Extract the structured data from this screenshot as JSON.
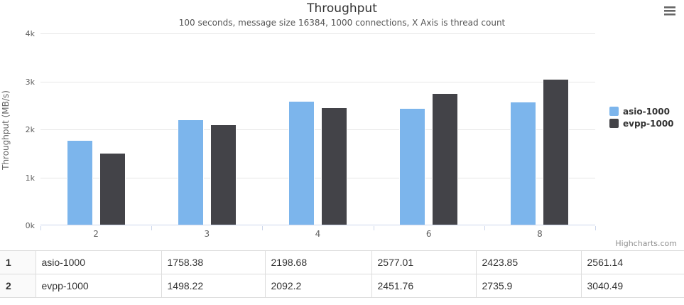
{
  "chart": {
    "title": "Throughput",
    "subtitle": "100 seconds, message size 16384, 1000 connections, X Axis is thread count",
    "yaxis_title": "Throughput (MB/s)",
    "credits": "Highcharts.com",
    "menu_icon": "hamburger-icon",
    "colors": {
      "series1": "#7cb5ec",
      "series2": "#434348",
      "gridline": "#e6e6e6",
      "axis_line": "#ccd6eb"
    }
  },
  "chart_data": {
    "type": "bar",
    "title": "Throughput",
    "subtitle": "100 seconds, message size 16384, 1000 connections, X Axis is thread count",
    "categories": [
      "2",
      "3",
      "4",
      "6",
      "8"
    ],
    "series": [
      {
        "name": "asio-1000",
        "color": "#7cb5ec",
        "values": [
          1758.38,
          2198.68,
          2577.01,
          2423.85,
          2561.14
        ]
      },
      {
        "name": "evpp-1000",
        "color": "#434348",
        "values": [
          1498.22,
          2092.2,
          2451.76,
          2735.9,
          3040.49
        ]
      }
    ],
    "xlabel": "thread count",
    "ylabel": "Throughput (MB/s)",
    "ylim": [
      0,
      4000
    ],
    "yticks": [
      {
        "value": 0,
        "label": "0k"
      },
      {
        "value": 1000,
        "label": "1k"
      },
      {
        "value": 2000,
        "label": "2k"
      },
      {
        "value": 3000,
        "label": "3k"
      },
      {
        "value": 4000,
        "label": "4k"
      }
    ],
    "grid": true,
    "legend_position": "right"
  },
  "table": {
    "rows": [
      {
        "index": "1",
        "name": "asio-1000",
        "values": [
          "1758.38",
          "2198.68",
          "2577.01",
          "2423.85",
          "2561.14"
        ]
      },
      {
        "index": "2",
        "name": "evpp-1000",
        "values": [
          "1498.22",
          "2092.2",
          "2451.76",
          "2735.9",
          "3040.49"
        ]
      }
    ]
  }
}
